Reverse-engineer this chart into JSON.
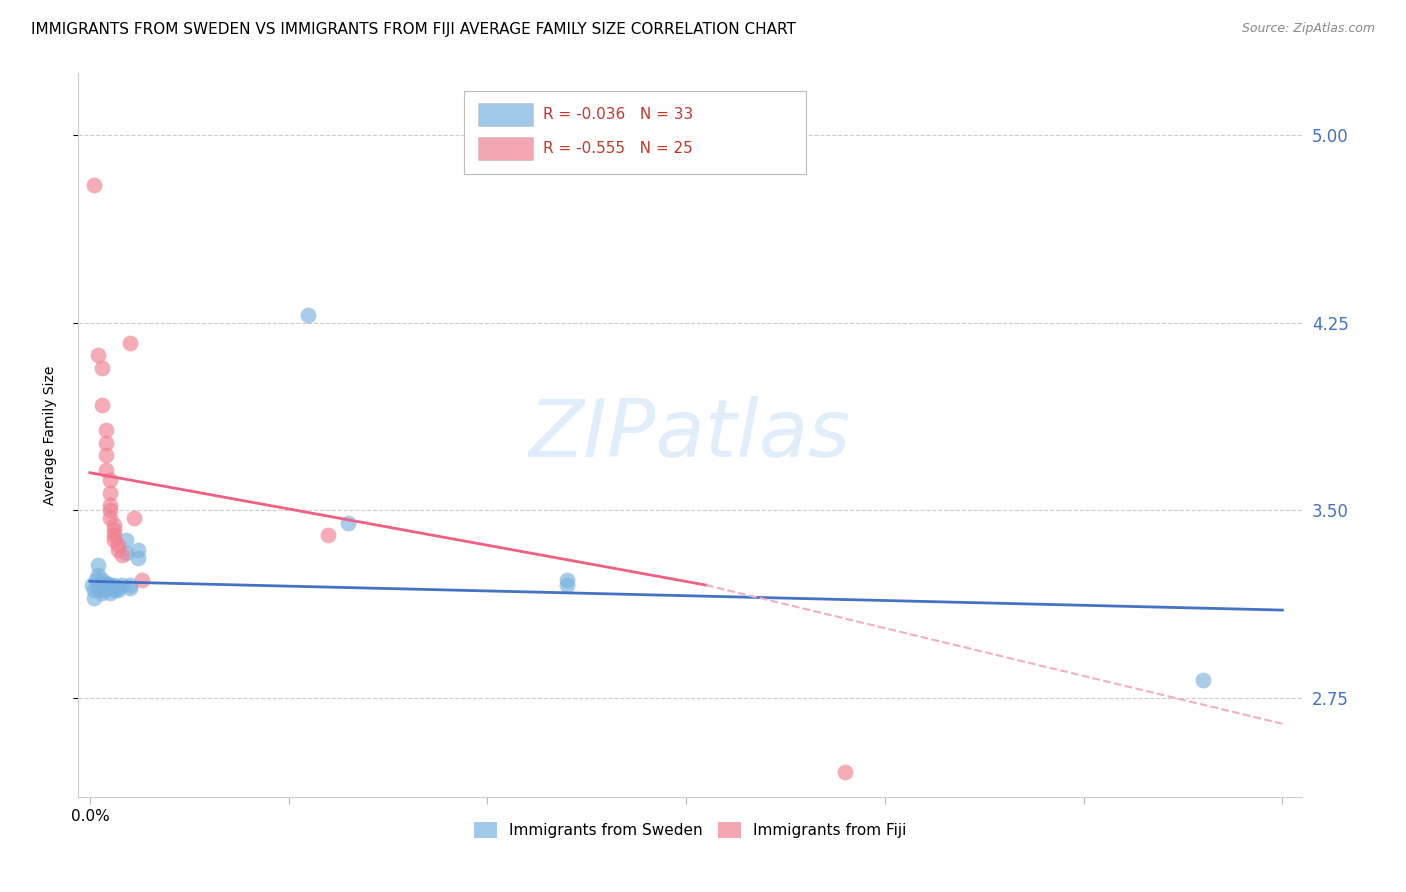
{
  "title": "IMMIGRANTS FROM SWEDEN VS IMMIGRANTS FROM FIJI AVERAGE FAMILY SIZE CORRELATION CHART",
  "source": "Source: ZipAtlas.com",
  "ylabel": "Average Family Size",
  "xlim": [
    -0.003,
    0.305
  ],
  "ylim": [
    2.35,
    5.25
  ],
  "yticks": [
    2.75,
    3.5,
    4.25,
    5.0
  ],
  "xticks_major": [
    0.0,
    0.05,
    0.1,
    0.15,
    0.2,
    0.25,
    0.3
  ],
  "xtick_labels_show": {
    "0.0": "0.0%"
  },
  "watermark": "ZIPatlas",
  "sweden_color": "#7ab3e0",
  "fiji_color": "#f08090",
  "sweden_scatter": [
    [
      0.0005,
      3.2
    ],
    [
      0.001,
      3.18
    ],
    [
      0.0015,
      3.22
    ],
    [
      0.001,
      3.15
    ],
    [
      0.002,
      3.28
    ],
    [
      0.002,
      3.24
    ],
    [
      0.002,
      3.19
    ],
    [
      0.003,
      3.22
    ],
    [
      0.003,
      3.2
    ],
    [
      0.003,
      3.18
    ],
    [
      0.003,
      3.17
    ],
    [
      0.004,
      3.21
    ],
    [
      0.004,
      3.2
    ],
    [
      0.004,
      3.19
    ],
    [
      0.005,
      3.2
    ],
    [
      0.005,
      3.17
    ],
    [
      0.005,
      3.19
    ],
    [
      0.006,
      3.18
    ],
    [
      0.006,
      3.2
    ],
    [
      0.007,
      3.19
    ],
    [
      0.007,
      3.18
    ],
    [
      0.008,
      3.2
    ],
    [
      0.009,
      3.38
    ],
    [
      0.009,
      3.33
    ],
    [
      0.01,
      3.2
    ],
    [
      0.01,
      3.19
    ],
    [
      0.012,
      3.34
    ],
    [
      0.012,
      3.31
    ],
    [
      0.055,
      4.28
    ],
    [
      0.065,
      3.45
    ],
    [
      0.12,
      3.22
    ],
    [
      0.12,
      3.2
    ],
    [
      0.28,
      2.82
    ]
  ],
  "fiji_scatter": [
    [
      0.001,
      4.8
    ],
    [
      0.002,
      4.12
    ],
    [
      0.003,
      4.07
    ],
    [
      0.003,
      3.92
    ],
    [
      0.004,
      3.82
    ],
    [
      0.004,
      3.77
    ],
    [
      0.004,
      3.72
    ],
    [
      0.004,
      3.66
    ],
    [
      0.005,
      3.62
    ],
    [
      0.005,
      3.57
    ],
    [
      0.005,
      3.52
    ],
    [
      0.005,
      3.5
    ],
    [
      0.005,
      3.47
    ],
    [
      0.006,
      3.44
    ],
    [
      0.006,
      3.42
    ],
    [
      0.006,
      3.4
    ],
    [
      0.006,
      3.38
    ],
    [
      0.007,
      3.36
    ],
    [
      0.007,
      3.34
    ],
    [
      0.008,
      3.32
    ],
    [
      0.01,
      4.17
    ],
    [
      0.011,
      3.47
    ],
    [
      0.013,
      3.22
    ],
    [
      0.06,
      3.4
    ],
    [
      0.19,
      2.45
    ]
  ],
  "sweden_R": -0.036,
  "sweden_N": 33,
  "fiji_R": -0.555,
  "fiji_N": 25,
  "sweden_line": [
    [
      0.0,
      3.215
    ],
    [
      0.3,
      3.1
    ]
  ],
  "fiji_line_solid": [
    [
      0.0,
      3.65
    ],
    [
      0.155,
      3.2
    ]
  ],
  "fiji_line_dashed": [
    [
      0.155,
      3.2
    ],
    [
      0.3,
      2.645
    ]
  ],
  "grid_color": "#cccccc",
  "title_fontsize": 11,
  "label_fontsize": 10,
  "tick_fontsize": 11,
  "right_tick_color": "#4472c4",
  "legend_R_color": "#c0392b"
}
